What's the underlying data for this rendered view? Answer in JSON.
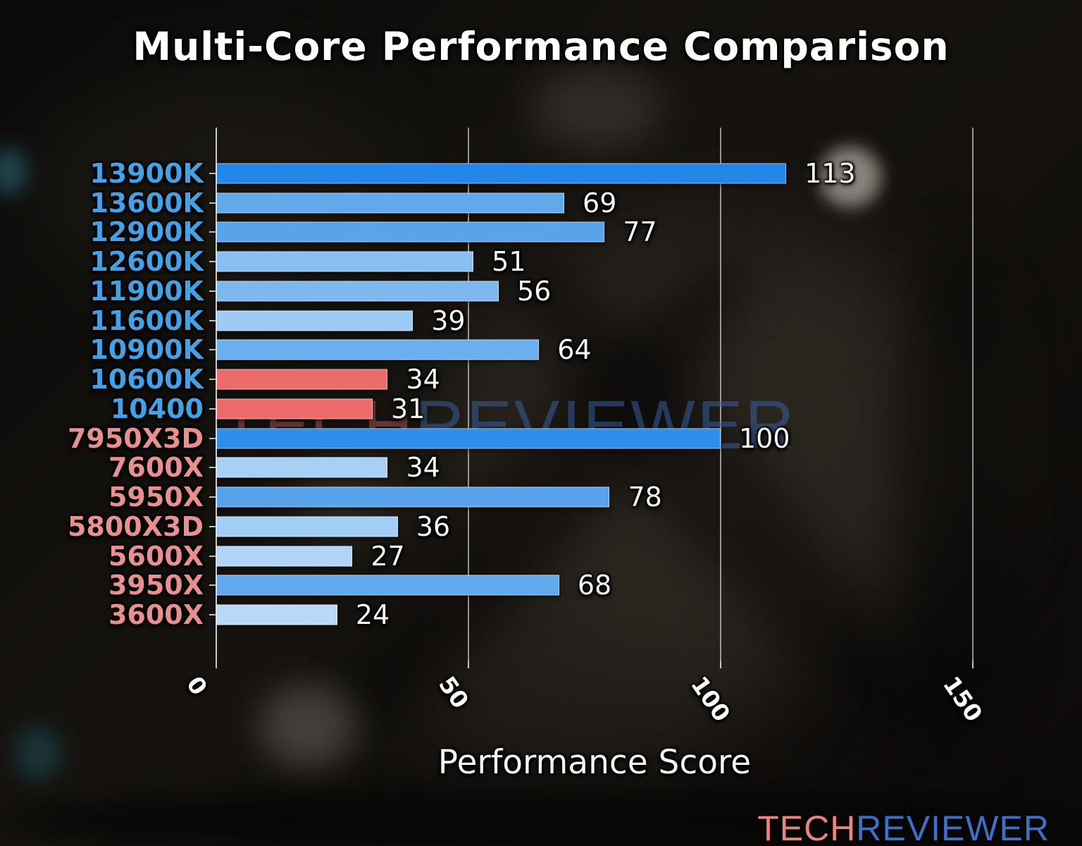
{
  "title": "Multi-Core Performance Comparison",
  "xlabel": "Performance Score",
  "watermark": {
    "tech": "TECH",
    "reviewer": "REVIEWER"
  },
  "logo": {
    "tech": "TECH",
    "reviewer": "REVIEWER"
  },
  "colors": {
    "intel_label": "#45a1e6",
    "amd_label": "#e8908f",
    "highlight_bar": "#ec6b6b",
    "logo_tech": "#e8837f",
    "logo_reviewer": "#3b70c4",
    "watermark_tech": "#b25b5b",
    "watermark_reviewer": "#3c64a8",
    "grid": "#cdcdcd",
    "value_text": "#f6f6f6",
    "title_text": "#ffffff"
  },
  "chart_data": {
    "type": "bar",
    "orientation": "horizontal",
    "title": "Multi-Core Performance Comparison",
    "xlabel": "Performance Score",
    "ylabel": "",
    "xlim": [
      0,
      150
    ],
    "xticks": [
      0,
      50,
      100,
      150
    ],
    "grid": true,
    "legend": false,
    "categories": [
      "13900K",
      "13600K",
      "12900K",
      "12600K",
      "11900K",
      "11600K",
      "10900K",
      "10600K",
      "10400",
      "7950X3D",
      "7600X",
      "5950X",
      "5800X3D",
      "5600X",
      "3950X",
      "3600X"
    ],
    "values": [
      113,
      69,
      77,
      51,
      56,
      39,
      64,
      34,
      31,
      100,
      34,
      78,
      36,
      27,
      68,
      24
    ],
    "bar_colors": [
      "#2287e8",
      "#62a9ec",
      "#58a3ea",
      "#87bff0",
      "#7db9ef",
      "#9ecbf3",
      "#6bb0ed",
      "#ec6b6b",
      "#ec6b6b",
      "#2e8ee9",
      "#a6d0f4",
      "#57a3ea",
      "#a2cdf4",
      "#b0d5f6",
      "#61a9eb",
      "#b7d9f7"
    ],
    "label_colors": [
      "#45a1e6",
      "#45a1e6",
      "#45a1e6",
      "#45a1e6",
      "#45a1e6",
      "#45a1e6",
      "#45a1e6",
      "#45a1e6",
      "#45a1e6",
      "#e8908f",
      "#e8908f",
      "#e8908f",
      "#e8908f",
      "#e8908f",
      "#e8908f",
      "#e8908f"
    ]
  }
}
